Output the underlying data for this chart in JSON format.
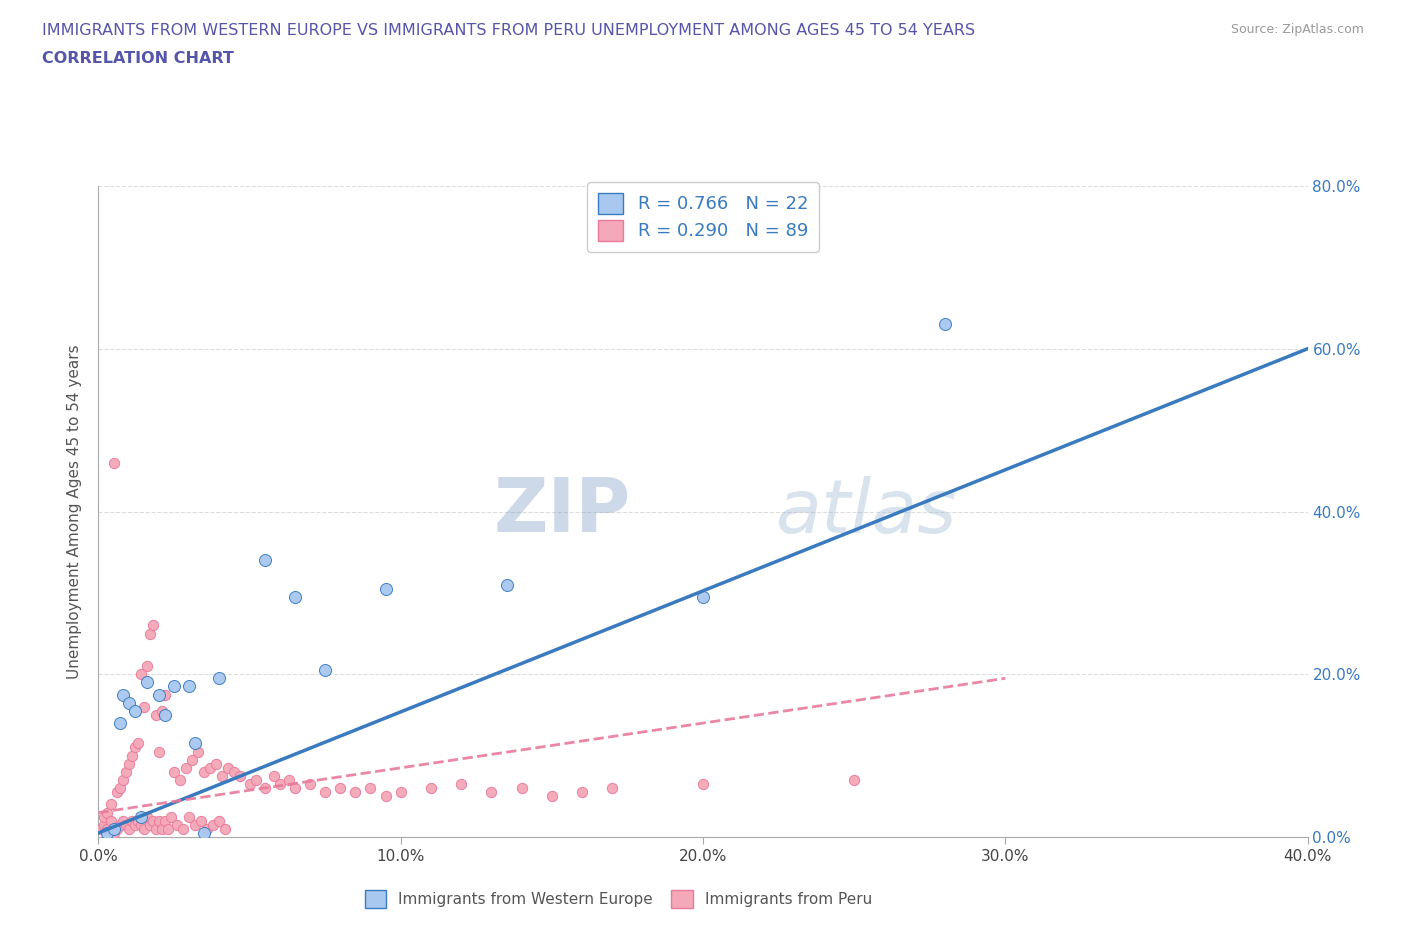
{
  "title_line1": "IMMIGRANTS FROM WESTERN EUROPE VS IMMIGRANTS FROM PERU UNEMPLOYMENT AMONG AGES 45 TO 54 YEARS",
  "title_line2": "CORRELATION CHART",
  "source_text": "Source: ZipAtlas.com",
  "ylabel": "Unemployment Among Ages 45 to 54 years",
  "xmin": 0.0,
  "xmax": 0.4,
  "ymin": 0.0,
  "ymax": 0.8,
  "blue_R": 0.766,
  "blue_N": 22,
  "pink_R": 0.29,
  "pink_N": 89,
  "blue_color": "#a8c8f0",
  "pink_color": "#f4a8b8",
  "blue_line_color": "#3a7abf",
  "pink_line_color": "#e87a9a",
  "watermark_zip": "ZIP",
  "watermark_atlas": "atlas",
  "xtick_labels": [
    "0.0%",
    "10.0%",
    "20.0%",
    "30.0%",
    "40.0%"
  ],
  "xtick_vals": [
    0.0,
    0.1,
    0.2,
    0.3,
    0.4
  ],
  "ytick_vals": [
    0.0,
    0.2,
    0.4,
    0.6,
    0.8
  ],
  "ytick_labels": [
    "0.0%",
    "20.0%",
    "40.0%",
    "60.0%",
    "80.0%"
  ],
  "blue_scatter_x": [
    0.003,
    0.005,
    0.007,
    0.008,
    0.01,
    0.012,
    0.014,
    0.016,
    0.02,
    0.022,
    0.025,
    0.03,
    0.032,
    0.035,
    0.04,
    0.055,
    0.065,
    0.075,
    0.095,
    0.135,
    0.2,
    0.28
  ],
  "blue_scatter_y": [
    0.005,
    0.01,
    0.14,
    0.175,
    0.165,
    0.155,
    0.025,
    0.19,
    0.175,
    0.15,
    0.185,
    0.185,
    0.115,
    0.005,
    0.195,
    0.34,
    0.295,
    0.205,
    0.305,
    0.31,
    0.295,
    0.63
  ],
  "pink_scatter_x": [
    0.001,
    0.002,
    0.002,
    0.003,
    0.003,
    0.004,
    0.004,
    0.005,
    0.005,
    0.006,
    0.006,
    0.007,
    0.007,
    0.008,
    0.008,
    0.009,
    0.009,
    0.01,
    0.01,
    0.011,
    0.011,
    0.012,
    0.012,
    0.013,
    0.013,
    0.014,
    0.014,
    0.015,
    0.015,
    0.016,
    0.016,
    0.017,
    0.017,
    0.018,
    0.018,
    0.019,
    0.019,
    0.02,
    0.02,
    0.021,
    0.021,
    0.022,
    0.022,
    0.023,
    0.024,
    0.025,
    0.026,
    0.027,
    0.028,
    0.029,
    0.03,
    0.031,
    0.032,
    0.033,
    0.034,
    0.035,
    0.036,
    0.037,
    0.038,
    0.039,
    0.04,
    0.041,
    0.042,
    0.043,
    0.045,
    0.047,
    0.05,
    0.052,
    0.055,
    0.058,
    0.06,
    0.063,
    0.065,
    0.07,
    0.075,
    0.08,
    0.085,
    0.09,
    0.095,
    0.1,
    0.11,
    0.12,
    0.13,
    0.14,
    0.15,
    0.16,
    0.17,
    0.2,
    0.25
  ],
  "pink_scatter_y": [
    0.01,
    0.015,
    0.025,
    0.01,
    0.03,
    0.02,
    0.04,
    0.005,
    0.46,
    0.01,
    0.055,
    0.015,
    0.06,
    0.02,
    0.07,
    0.015,
    0.08,
    0.01,
    0.09,
    0.02,
    0.1,
    0.015,
    0.11,
    0.02,
    0.115,
    0.015,
    0.2,
    0.01,
    0.16,
    0.025,
    0.21,
    0.015,
    0.25,
    0.02,
    0.26,
    0.01,
    0.15,
    0.02,
    0.105,
    0.01,
    0.155,
    0.02,
    0.175,
    0.01,
    0.025,
    0.08,
    0.015,
    0.07,
    0.01,
    0.085,
    0.025,
    0.095,
    0.015,
    0.105,
    0.02,
    0.08,
    0.01,
    0.085,
    0.015,
    0.09,
    0.02,
    0.075,
    0.01,
    0.085,
    0.08,
    0.075,
    0.065,
    0.07,
    0.06,
    0.075,
    0.065,
    0.07,
    0.06,
    0.065,
    0.055,
    0.06,
    0.055,
    0.06,
    0.05,
    0.055,
    0.06,
    0.065,
    0.055,
    0.06,
    0.05,
    0.055,
    0.06,
    0.065,
    0.07
  ],
  "legend_label_blue": "Immigrants from Western Europe",
  "legend_label_pink": "Immigrants from Peru",
  "title_color": "#5555aa",
  "grid_color": "#dddddd"
}
